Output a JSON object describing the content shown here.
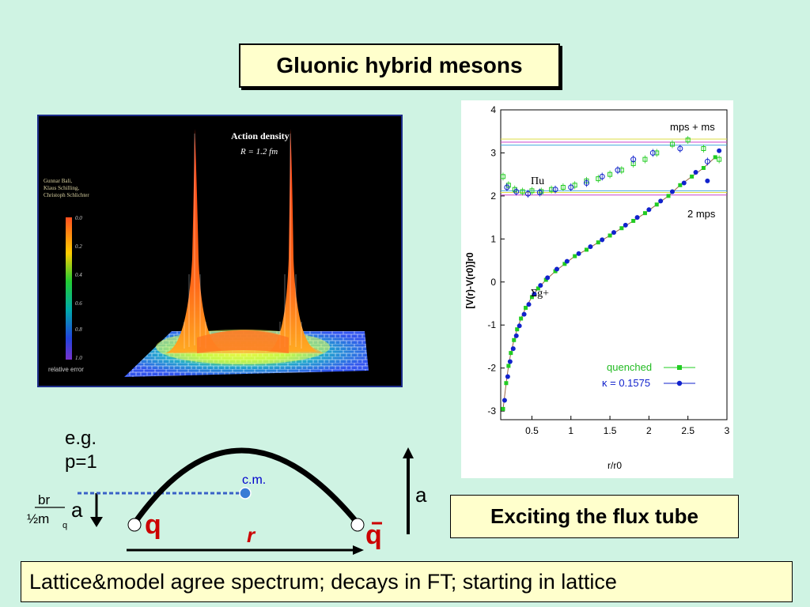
{
  "title": "Gluonic hybrid mesons",
  "action_panel": {
    "title": "Action density",
    "subtitle": "R = 1.2 fm",
    "authors": [
      "Gunnar Bali,",
      "Klaus Schilling,",
      "Christoph Schlichter"
    ],
    "colorbar_ticks": [
      "0.0",
      "0.2",
      "0.4",
      "0.6",
      "0.8",
      "1.0"
    ],
    "colorbar_label": "relative error",
    "colors": [
      "#ff7e1a",
      "#ffcc00",
      "#33cc33",
      "#00aaaa",
      "#3344dd",
      "#7733cc"
    ]
  },
  "chart_data": {
    "type": "scatter",
    "xlabel": "r/r0",
    "ylabel": "[V(r)-V(r0)]r0",
    "xlim": [
      0.1,
      3.0
    ],
    "ylim": [
      -3.2,
      4.0
    ],
    "xticks": [
      "0.5",
      "1",
      "1.5",
      "2",
      "2.5",
      "3"
    ],
    "yticks": [
      "-3",
      "-2",
      "-1",
      "0",
      "1",
      "2",
      "3",
      "4"
    ],
    "reference_lines": [
      {
        "label": "mps + ms",
        "y": [
          3.25,
          3.32,
          3.18
        ]
      },
      {
        "label": "2 mps",
        "y": [
          2.02,
          2.08,
          2.12
        ]
      }
    ],
    "curve_labels": [
      "Πu",
      "Σg+"
    ],
    "legend": [
      "quenched",
      "κ = 0.1575"
    ],
    "legend_position": "bottom-right",
    "series": [
      {
        "name": "quenched",
        "color": "#22cc22",
        "sigma_g_x": [
          0.13,
          0.17,
          0.2,
          0.23,
          0.27,
          0.31,
          0.36,
          0.42,
          0.5,
          0.58,
          0.68,
          0.8,
          0.92,
          1.05,
          1.2,
          1.35,
          1.5,
          1.65,
          1.8,
          1.95,
          2.1,
          2.25,
          2.4,
          2.55,
          2.7,
          2.85
        ],
        "sigma_g_y": [
          -2.95,
          -2.35,
          -1.95,
          -1.65,
          -1.35,
          -1.1,
          -0.85,
          -0.6,
          -0.35,
          -0.15,
          0.05,
          0.25,
          0.42,
          0.6,
          0.75,
          0.92,
          1.08,
          1.25,
          1.42,
          1.6,
          1.8,
          2.0,
          2.25,
          2.45,
          2.65,
          2.9
        ],
        "pi_u_x": [
          0.13,
          0.2,
          0.28,
          0.38,
          0.5,
          0.62,
          0.75,
          0.9,
          1.05,
          1.2,
          1.35,
          1.5,
          1.65,
          1.8,
          1.95,
          2.1,
          2.3,
          2.5,
          2.7,
          2.9
        ],
        "pi_u_y": [
          2.45,
          2.25,
          2.15,
          2.1,
          2.12,
          2.1,
          2.15,
          2.2,
          2.25,
          2.35,
          2.4,
          2.5,
          2.6,
          2.75,
          2.85,
          3.0,
          3.2,
          3.3,
          3.1,
          2.85
        ]
      },
      {
        "name": "κ = 0.1575",
        "color": "#1122cc",
        "sigma_g_x": [
          0.15,
          0.19,
          0.22,
          0.26,
          0.3,
          0.34,
          0.4,
          0.46,
          0.53,
          0.61,
          0.7,
          0.82,
          0.95,
          1.1,
          1.25,
          1.4,
          1.55,
          1.7,
          1.85,
          2.0,
          2.15,
          2.3,
          2.45,
          2.6,
          2.75,
          2.9
        ],
        "sigma_g_y": [
          -2.75,
          -2.2,
          -1.85,
          -1.55,
          -1.25,
          -1.02,
          -0.75,
          -0.52,
          -0.28,
          -0.08,
          0.1,
          0.3,
          0.48,
          0.66,
          0.82,
          0.98,
          1.15,
          1.32,
          1.5,
          1.68,
          1.88,
          2.1,
          2.3,
          2.55,
          2.35,
          3.05
        ],
        "pi_u_x": [
          0.18,
          0.3,
          0.45,
          0.6,
          0.8,
          1.0,
          1.2,
          1.4,
          1.6,
          1.8,
          2.05,
          2.4,
          2.75
        ],
        "pi_u_y": [
          2.2,
          2.1,
          2.05,
          2.08,
          2.15,
          2.2,
          2.3,
          2.45,
          2.6,
          2.85,
          3.0,
          3.1,
          2.8
        ]
      }
    ]
  },
  "diagram": {
    "eg_label": "e.g.",
    "p_label": "p=1",
    "a_label": "a",
    "br_label": "br",
    "mq_label": "½m",
    "q_sub": "q",
    "cm_label": "c.m.",
    "q_left": "q",
    "q_right": "q",
    "r_label": "r",
    "a_right_label": "a"
  },
  "flux_label": "Exciting the flux tube",
  "bottom_text": "Lattice&model agree spectrum; decays in FT; starting in lattice"
}
